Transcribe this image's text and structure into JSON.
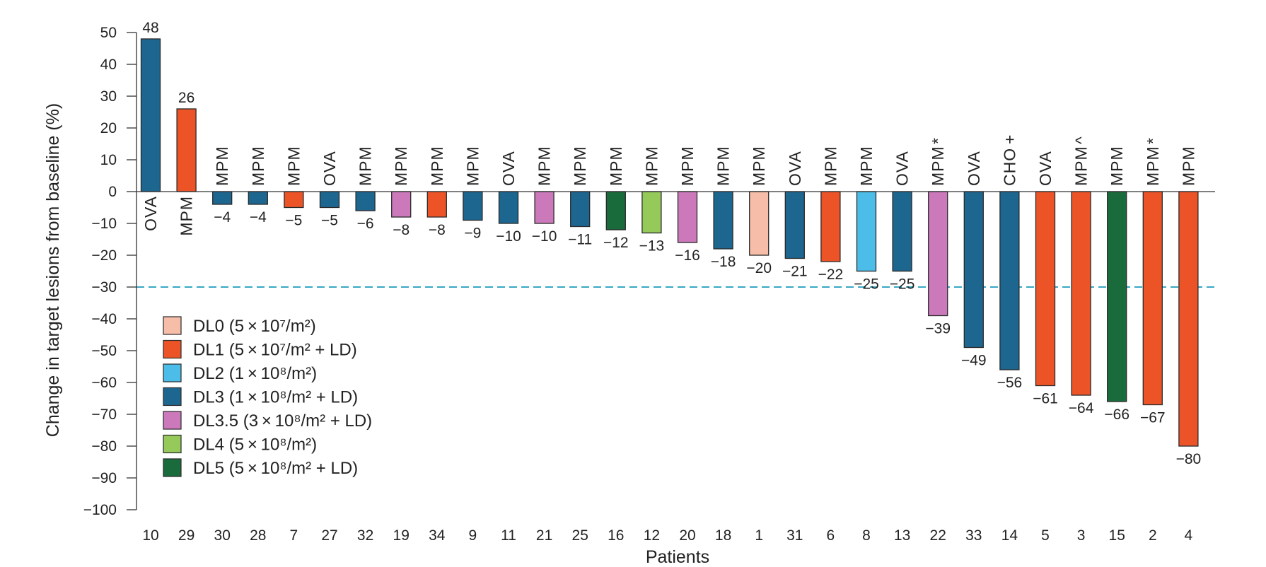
{
  "chart_data": {
    "type": "bar",
    "xlabel": "Patients",
    "ylabel": "Change in target lesions from baseline (%)",
    "ylim": [
      -100,
      50
    ],
    "yticks": [
      50,
      40,
      30,
      20,
      10,
      0,
      -10,
      -20,
      -30,
      -40,
      -50,
      -60,
      -70,
      -80,
      -90,
      -100
    ],
    "ytick_labels": [
      "50",
      "40",
      "30",
      "20",
      "10",
      "0",
      "−10",
      "−20",
      "−30",
      "−40",
      "−50",
      "−60",
      "−70",
      "−80",
      "−90",
      "−100"
    ],
    "threshold": -30,
    "threshold_color": "#38a7c4",
    "legend_position": "left",
    "legend": [
      {
        "key": "DL0",
        "text": "DL0 (5 × 10⁷/m²)",
        "color": "#f6bda8"
      },
      {
        "key": "DL1",
        "text": "DL1 (5 × 10⁷/m² + LD)",
        "color": "#ec5427"
      },
      {
        "key": "DL2",
        "text": "DL2 (1 × 10⁸/m²)",
        "color": "#4bbde8"
      },
      {
        "key": "DL3",
        "text": "DL3 (1 × 10⁸/m² + LD)",
        "color": "#1d6690"
      },
      {
        "key": "DL3.5",
        "text": "DL3.5 (3 × 10⁸/m² + LD)",
        "color": "#cb79bb"
      },
      {
        "key": "DL4",
        "text": "DL4 (5 × 10⁸/m²)",
        "color": "#95c95a"
      },
      {
        "key": "DL5",
        "text": "DL5 (5 × 10⁸/m² + LD)",
        "color": "#196b3b"
      }
    ],
    "bars": [
      {
        "patient": "10",
        "value": 48,
        "label": "48",
        "tumor": "OVA",
        "level": "DL3",
        "marker": ""
      },
      {
        "patient": "29",
        "value": 26,
        "label": "26",
        "tumor": "MPM",
        "level": "DL1",
        "marker": ""
      },
      {
        "patient": "30",
        "value": -4,
        "label": "−4",
        "tumor": "MPM",
        "level": "DL3",
        "marker": ""
      },
      {
        "patient": "28",
        "value": -4,
        "label": "−4",
        "tumor": "MPM",
        "level": "DL3",
        "marker": ""
      },
      {
        "patient": "7",
        "value": -5,
        "label": "−5",
        "tumor": "MPM",
        "level": "DL1",
        "marker": ""
      },
      {
        "patient": "27",
        "value": -5,
        "label": "−5",
        "tumor": "OVA",
        "level": "DL3",
        "marker": ""
      },
      {
        "patient": "32",
        "value": -6,
        "label": "−6",
        "tumor": "MPM",
        "level": "DL3",
        "marker": ""
      },
      {
        "patient": "19",
        "value": -8,
        "label": "−8",
        "tumor": "MPM",
        "level": "DL3.5",
        "marker": ""
      },
      {
        "patient": "34",
        "value": -8,
        "label": "−8",
        "tumor": "MPM",
        "level": "DL1",
        "marker": ""
      },
      {
        "patient": "9",
        "value": -9,
        "label": "−9",
        "tumor": "MPM",
        "level": "DL3",
        "marker": ""
      },
      {
        "patient": "11",
        "value": -10,
        "label": "−10",
        "tumor": "OVA",
        "level": "DL3",
        "marker": ""
      },
      {
        "patient": "21",
        "value": -10,
        "label": "−10",
        "tumor": "MPM",
        "level": "DL3.5",
        "marker": ""
      },
      {
        "patient": "25",
        "value": -11,
        "label": "−11",
        "tumor": "MPM",
        "level": "DL3",
        "marker": ""
      },
      {
        "patient": "16",
        "value": -12,
        "label": "−12",
        "tumor": "MPM",
        "level": "DL5",
        "marker": ""
      },
      {
        "patient": "12",
        "value": -13,
        "label": "−13",
        "tumor": "MPM",
        "level": "DL4",
        "marker": ""
      },
      {
        "patient": "20",
        "value": -16,
        "label": "−16",
        "tumor": "MPM",
        "level": "DL3.5",
        "marker": ""
      },
      {
        "patient": "18",
        "value": -18,
        "label": "−18",
        "tumor": "MPM",
        "level": "DL3",
        "marker": ""
      },
      {
        "patient": "1",
        "value": -20,
        "label": "−20",
        "tumor": "MPM",
        "level": "DL0",
        "marker": ""
      },
      {
        "patient": "31",
        "value": -21,
        "label": "−21",
        "tumor": "OVA",
        "level": "DL3",
        "marker": ""
      },
      {
        "patient": "6",
        "value": -22,
        "label": "−22",
        "tumor": "MPM",
        "level": "DL1",
        "marker": ""
      },
      {
        "patient": "8",
        "value": -25,
        "label": "−25",
        "tumor": "MPM",
        "level": "DL2",
        "marker": ""
      },
      {
        "patient": "13",
        "value": -25,
        "label": "−25",
        "tumor": "OVA",
        "level": "DL3",
        "marker": ""
      },
      {
        "patient": "22",
        "value": -39,
        "label": "−39",
        "tumor": "MPM",
        "level": "DL3.5",
        "marker": "*"
      },
      {
        "patient": "33",
        "value": -49,
        "label": "−49",
        "tumor": "OVA",
        "level": "DL3",
        "marker": ""
      },
      {
        "patient": "14",
        "value": -56,
        "label": "−56",
        "tumor": "CHO",
        "level": "DL3",
        "marker": "+"
      },
      {
        "patient": "5",
        "value": -61,
        "label": "−61",
        "tumor": "OVA",
        "level": "DL1",
        "marker": ""
      },
      {
        "patient": "3",
        "value": -64,
        "label": "−64",
        "tumor": "MPM",
        "level": "DL1",
        "marker": "^"
      },
      {
        "patient": "15",
        "value": -66,
        "label": "−66",
        "tumor": "MPM",
        "level": "DL5",
        "marker": ""
      },
      {
        "patient": "2",
        "value": -67,
        "label": "−67",
        "tumor": "MPM",
        "level": "DL1",
        "marker": "*"
      },
      {
        "patient": "4",
        "value": -80,
        "label": "−80",
        "tumor": "MPM",
        "level": "DL1",
        "marker": ""
      }
    ]
  }
}
